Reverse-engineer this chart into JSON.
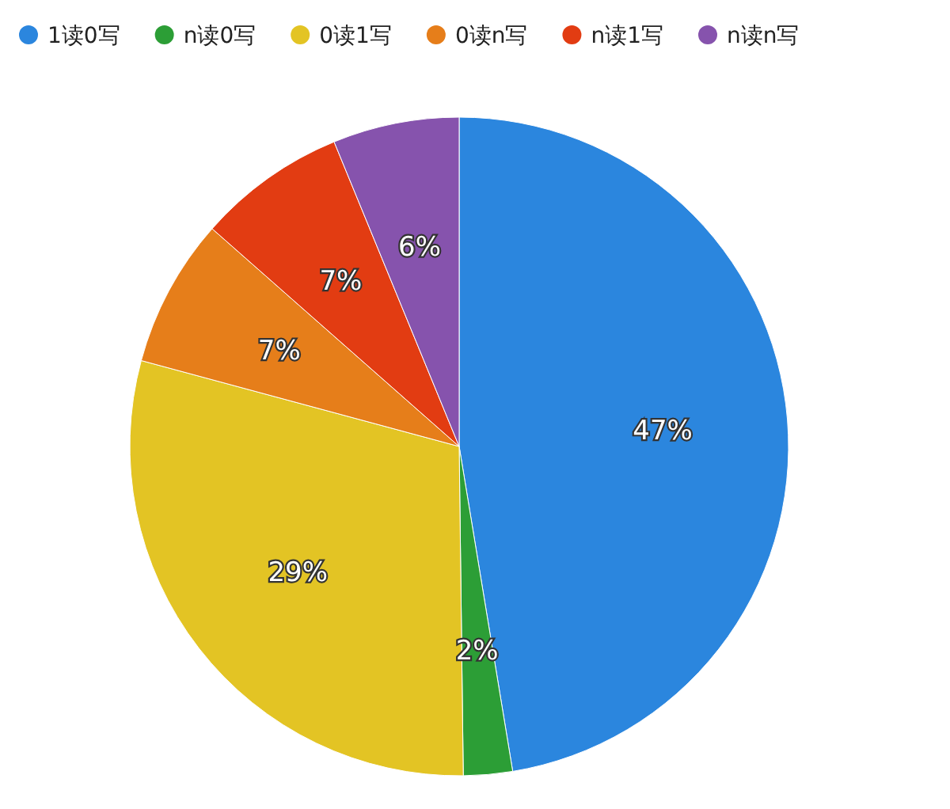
{
  "chart_data": {
    "type": "pie",
    "categories": [
      "1读0写",
      "n读0写",
      "0读1写",
      "0读n写",
      "n读1写",
      "n读n写"
    ],
    "values": [
      47.4,
      2.4,
      29.4,
      7.3,
      7.3,
      6.2
    ],
    "value_labels": [
      "47%",
      "2%",
      "29%",
      "7%",
      "7%",
      "6%"
    ],
    "colors": [
      "#2b86de",
      "#2c9e36",
      "#e3c424",
      "#e67e1a",
      "#e23c12",
      "#8653ad"
    ],
    "legend": "top"
  }
}
